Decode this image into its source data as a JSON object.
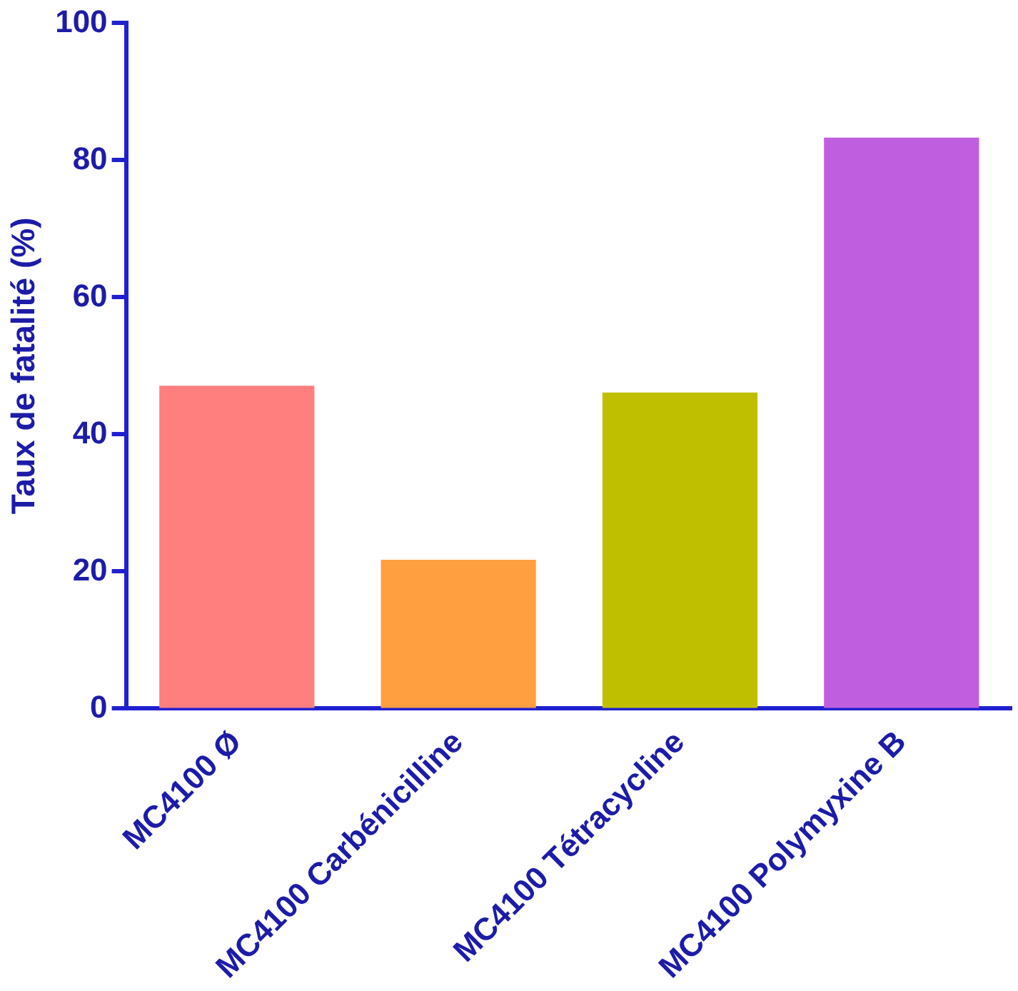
{
  "chart_data": {
    "type": "bar",
    "ylabel": "Taux de fatalité (%)",
    "categories": [
      "MC4100 Ø",
      "MC4100 Carbénicilline",
      "MC4100 Tétracycline",
      "MC4100 Polymyxine B"
    ],
    "values": [
      47.1,
      21.7,
      46.1,
      83.3
    ],
    "colors": [
      "#ff7f7f",
      "#ff9f3f",
      "#bfbf00",
      "#bf5fdf"
    ],
    "ylim": [
      0,
      100
    ],
    "yticks": [
      0,
      20,
      40,
      60,
      80,
      100
    ],
    "grid": false,
    "legend": false
  }
}
